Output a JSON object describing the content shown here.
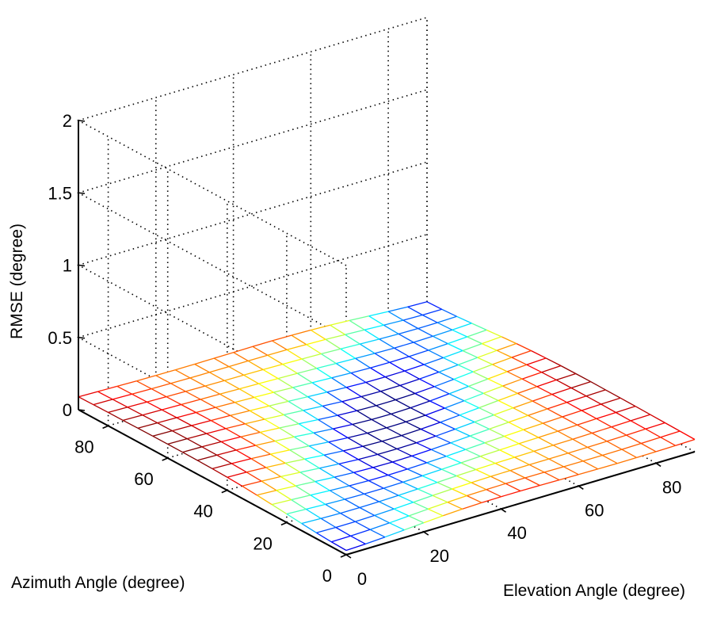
{
  "chart_data": {
    "type": "surface",
    "title": "",
    "xlabel": "Elevation Angle (degree)",
    "ylabel": "Azimuth Angle (degree)",
    "zlabel": "RMSE (degree)",
    "xlim": [
      0,
      90
    ],
    "ylim": [
      0,
      90
    ],
    "zlim": [
      0,
      2
    ],
    "xticks": [
      0,
      20,
      40,
      60,
      80
    ],
    "yticks": [
      0,
      20,
      40,
      60,
      80
    ],
    "zticks": [
      0,
      0.5,
      1,
      1.5,
      2
    ],
    "xtick_labels": [
      "0",
      "20",
      "40",
      "60",
      "80"
    ],
    "ytick_labels": [
      "0",
      "20",
      "40",
      "60",
      "80"
    ],
    "ztick_labels": [
      "0",
      "0.5",
      "1",
      "1.5",
      "2"
    ],
    "grid": true,
    "colormap": "jet",
    "mesh_steps": 5,
    "x": [
      0,
      5,
      10,
      15,
      20,
      25,
      30,
      35,
      40,
      45,
      50,
      55,
      60,
      65,
      70,
      75,
      80,
      85,
      90
    ],
    "y": [
      0,
      5,
      10,
      15,
      20,
      25,
      30,
      35,
      40,
      45,
      50,
      55,
      60,
      65,
      70,
      75,
      80,
      85,
      90
    ],
    "z_description_values": {
      "min": 0.02,
      "max": 0.09
    }
  }
}
